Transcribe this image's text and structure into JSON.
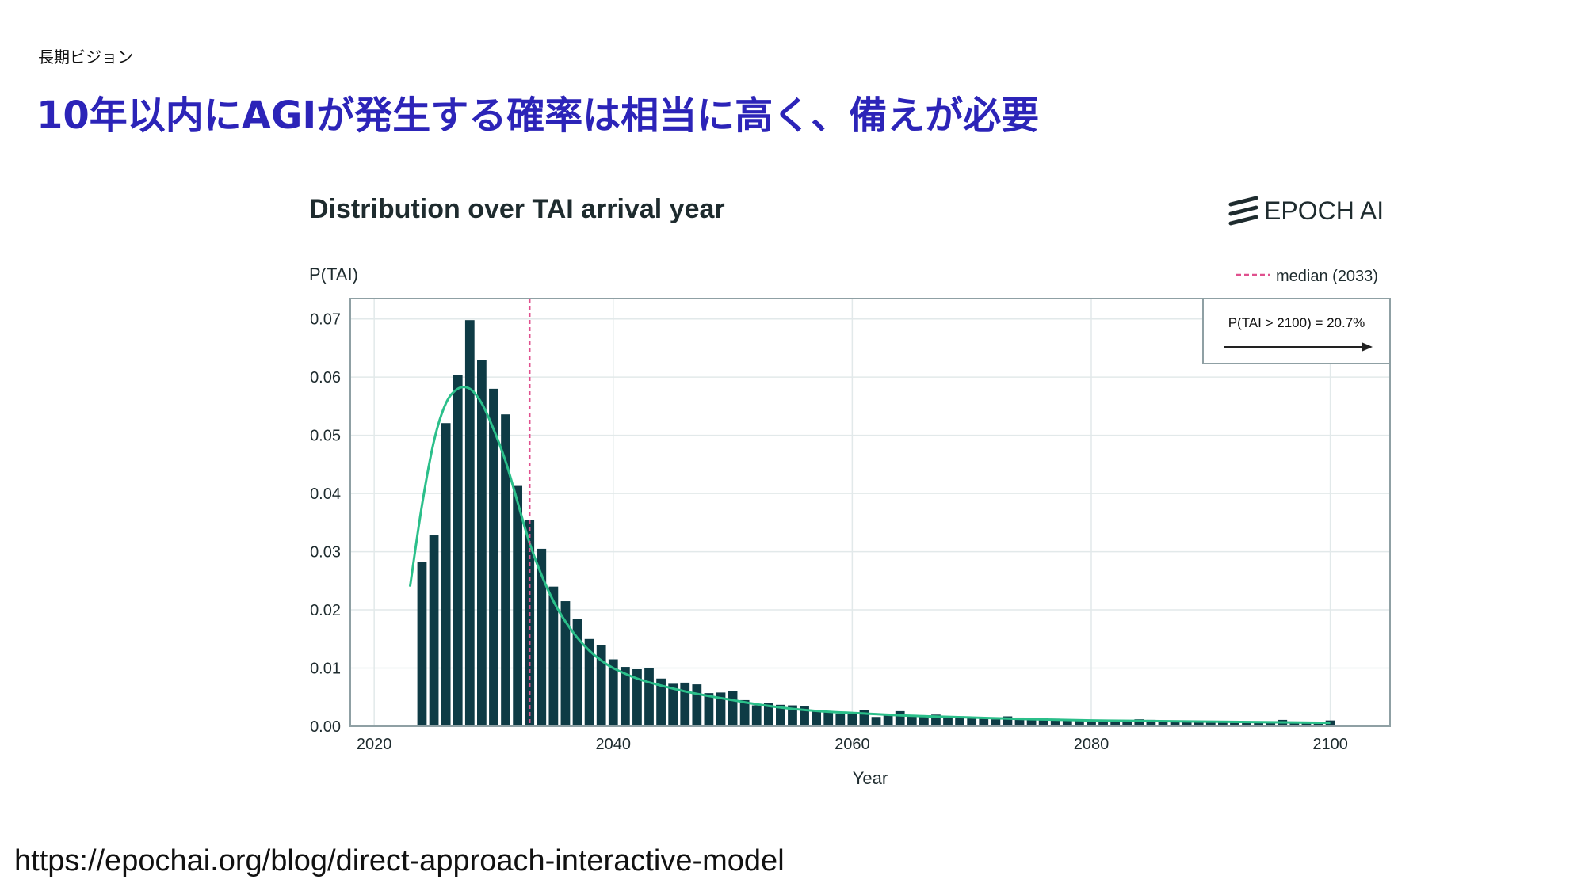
{
  "slide": {
    "section": "長期ビジョン",
    "title": "10年以内にAGIが発生する確率は相当に高く、備えが必要",
    "title_color": "#2c24b8",
    "source_url": "https://epochai.org/blog/direct-approach-interactive-model"
  },
  "chart_data": {
    "type": "bar",
    "title": "Distribution over TAI arrival year",
    "brand": "EPOCH AI",
    "ylabel": "P(TAI)",
    "xlabel": "Year",
    "xlim": [
      2018,
      2105
    ],
    "ylim": [
      0,
      0.0735
    ],
    "x_ticks": [
      "2020",
      "2040",
      "2060",
      "2080",
      "2100"
    ],
    "y_ticks": [
      "0.00",
      "0.01",
      "0.02",
      "0.03",
      "0.04",
      "0.05",
      "0.06",
      "0.07"
    ],
    "grid": true,
    "legend": {
      "position": "top-right",
      "label": "median (2033)"
    },
    "median": 2033,
    "callout": {
      "text": "P(TAI > 2100) = 20.7%",
      "position": "top-right"
    },
    "colors": {
      "bar": "#0e3b45",
      "line": "#2bbf8a",
      "median": "#e0508e",
      "grid": "#e2e9ea",
      "axis": "#8fa0a4",
      "text": "#1e2b2e"
    },
    "series": [
      {
        "type": "bar",
        "x": [
          2024,
          2025,
          2026,
          2027,
          2028,
          2029,
          2030,
          2031,
          2032,
          2033,
          2034,
          2035,
          2036,
          2037,
          2038,
          2039,
          2040,
          2041,
          2042,
          2043,
          2044,
          2045,
          2046,
          2047,
          2048,
          2049,
          2050,
          2051,
          2052,
          2053,
          2054,
          2055,
          2056,
          2057,
          2058,
          2059,
          2060,
          2061,
          2062,
          2063,
          2064,
          2065,
          2066,
          2067,
          2068,
          2069,
          2070,
          2071,
          2072,
          2073,
          2074,
          2075,
          2076,
          2077,
          2078,
          2079,
          2080,
          2081,
          2082,
          2083,
          2084,
          2085,
          2086,
          2087,
          2088,
          2089,
          2090,
          2091,
          2092,
          2093,
          2094,
          2095,
          2096,
          2097,
          2098,
          2099,
          2100
        ],
        "values": [
          0.0282,
          0.0328,
          0.0521,
          0.0603,
          0.0698,
          0.063,
          0.058,
          0.0536,
          0.0413,
          0.0355,
          0.0305,
          0.024,
          0.0215,
          0.0185,
          0.015,
          0.014,
          0.0115,
          0.0102,
          0.0098,
          0.01,
          0.0082,
          0.0073,
          0.0075,
          0.0072,
          0.0057,
          0.0058,
          0.006,
          0.0045,
          0.0036,
          0.004,
          0.0037,
          0.0036,
          0.0034,
          0.0026,
          0.0025,
          0.0022,
          0.0024,
          0.0028,
          0.0016,
          0.0021,
          0.0026,
          0.0018,
          0.0019,
          0.002,
          0.0017,
          0.0016,
          0.0015,
          0.0014,
          0.0012,
          0.0017,
          0.0015,
          0.0014,
          0.0014,
          0.0013,
          0.0011,
          0.001,
          0.0011,
          0.001,
          0.0008,
          0.0009,
          0.0012,
          0.0011,
          0.0009,
          0.001,
          0.0009,
          0.0009,
          0.0008,
          0.0008,
          0.0006,
          0.0007,
          0.0007,
          0.0006,
          0.0011,
          0.0007,
          0.0006,
          0.0007,
          0.001
        ]
      },
      {
        "type": "line",
        "x": [
          2023,
          2024,
          2025,
          2026,
          2027,
          2028,
          2029,
          2030,
          2031,
          2032,
          2033,
          2034,
          2035,
          2036,
          2037,
          2038,
          2039,
          2040,
          2042,
          2044,
          2046,
          2048,
          2050,
          2052,
          2055,
          2058,
          2060,
          2065,
          2070,
          2075,
          2080,
          2085,
          2090,
          2095,
          2100
        ],
        "values": [
          0.024,
          0.038,
          0.049,
          0.0555,
          0.058,
          0.058,
          0.0555,
          0.051,
          0.0455,
          0.0385,
          0.0315,
          0.026,
          0.0215,
          0.018,
          0.0152,
          0.013,
          0.0113,
          0.01,
          0.0082,
          0.007,
          0.006,
          0.0052,
          0.0045,
          0.0038,
          0.003,
          0.0025,
          0.0023,
          0.0018,
          0.0015,
          0.0012,
          0.001,
          0.0009,
          0.0008,
          0.0007,
          0.0006
        ]
      }
    ]
  }
}
